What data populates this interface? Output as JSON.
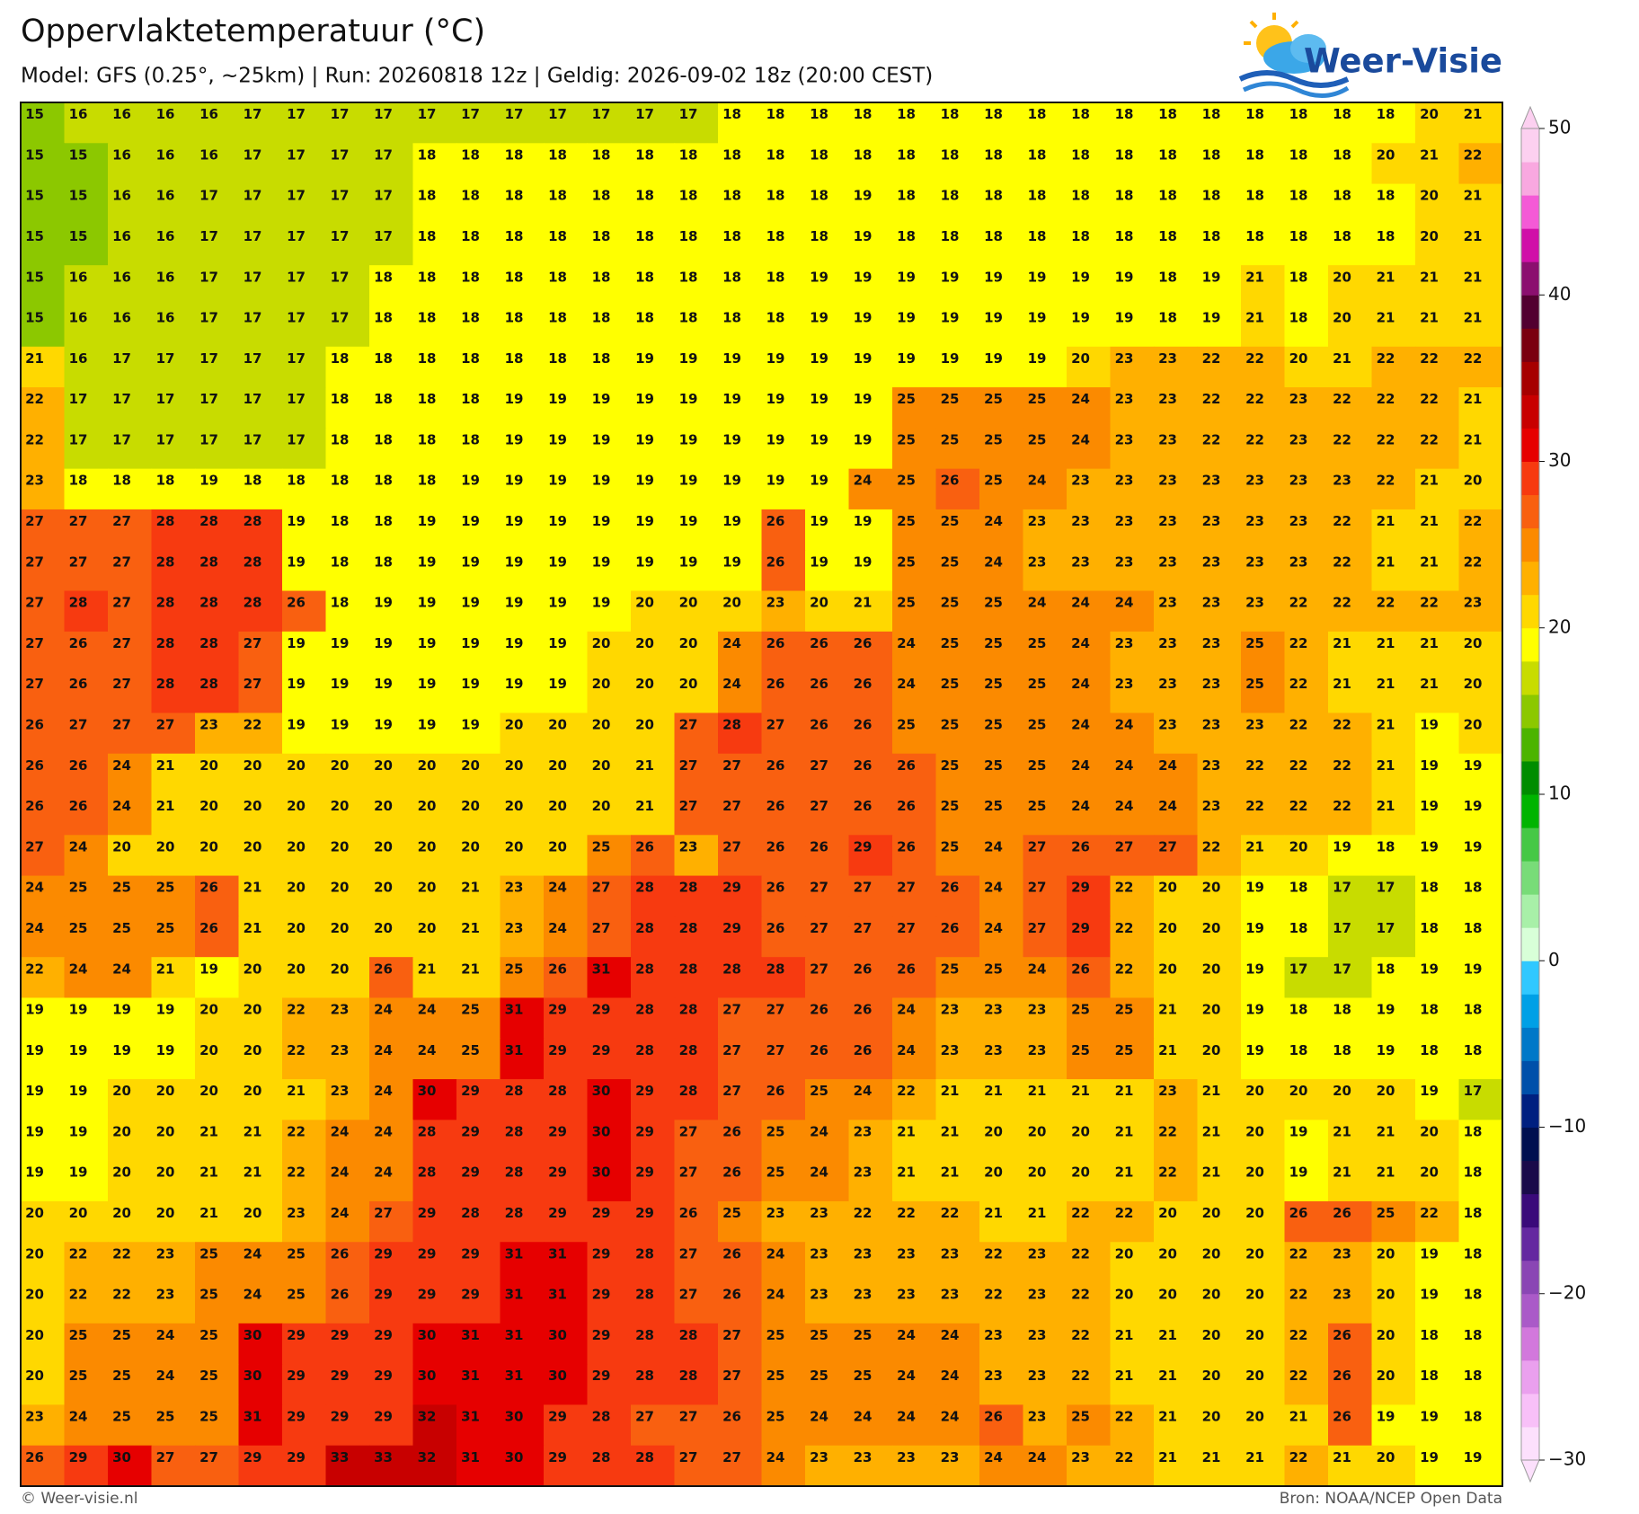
{
  "header": {
    "title": "Oppervlaktetemperatuur (°C)",
    "subtitle": "Model: GFS (0.25°, ~25km)  |  Run: 20260818 12z  |  Geldig: 2026-09-02 18z (20:00 CEST)"
  },
  "logo": {
    "text": "Weer-Visie"
  },
  "footer": {
    "left": "© Weer-visie.nl",
    "right": "Bron: NOAA/NCEP Open Data"
  },
  "colorbar": {
    "lim": [
      -30,
      50
    ],
    "ticks": [
      {
        "value": -30,
        "label": "−30"
      },
      {
        "value": -20,
        "label": "−20"
      },
      {
        "value": -10,
        "label": "−10"
      },
      0,
      10,
      20,
      30,
      40,
      50
    ],
    "colors": [
      "#fce0fc",
      "#f8c0f8",
      "#eaa0ee",
      "#d278dc",
      "#aa5ac8",
      "#8a46b4",
      "#6428a0",
      "#3a0a7a",
      "#1a0a4a",
      "#001050",
      "#002080",
      "#0050aa",
      "#0078c8",
      "#00a0e6",
      "#30c8ff",
      "#d8ffd8",
      "#a8f0a8",
      "#78dc78",
      "#46c846",
      "#00b400",
      "#008c00",
      "#4cb400",
      "#8cc800",
      "#c8dc00",
      "#ffff00",
      "#ffd800",
      "#ffb000",
      "#fb8a00",
      "#f96010",
      "#f73a10",
      "#e60000",
      "#c80000",
      "#a60000",
      "#7a0010",
      "#520030",
      "#8b0f6f",
      "#d010a8",
      "#f45ad6",
      "#f9a8e0",
      "#fcd0f0"
    ]
  },
  "map": {
    "grid": [
      [
        15,
        16,
        16,
        16,
        16,
        17,
        17,
        17,
        17,
        17,
        17,
        17,
        17,
        17,
        17,
        17,
        18,
        18,
        18,
        18,
        18,
        18,
        18,
        18,
        18,
        18,
        18,
        18,
        18,
        18,
        18,
        18,
        20,
        21
      ],
      [
        15,
        15,
        16,
        16,
        16,
        17,
        17,
        17,
        17,
        18,
        18,
        18,
        18,
        18,
        18,
        18,
        18,
        18,
        18,
        18,
        18,
        18,
        18,
        18,
        18,
        18,
        18,
        18,
        18,
        18,
        18,
        20,
        21,
        22
      ],
      [
        15,
        15,
        16,
        16,
        17,
        17,
        17,
        17,
        17,
        18,
        18,
        18,
        18,
        18,
        18,
        18,
        18,
        18,
        18,
        19,
        18,
        18,
        18,
        18,
        18,
        18,
        18,
        18,
        18,
        18,
        18,
        18,
        20,
        21
      ],
      [
        15,
        15,
        16,
        16,
        17,
        17,
        17,
        17,
        17,
        18,
        18,
        18,
        18,
        18,
        18,
        18,
        18,
        18,
        18,
        19,
        18,
        18,
        18,
        18,
        18,
        18,
        18,
        18,
        18,
        18,
        18,
        18,
        20,
        21
      ],
      [
        15,
        16,
        16,
        16,
        17,
        17,
        17,
        17,
        18,
        18,
        18,
        18,
        18,
        18,
        18,
        18,
        18,
        18,
        19,
        19,
        19,
        19,
        19,
        19,
        19,
        19,
        18,
        19,
        21,
        18,
        20,
        21,
        21,
        21
      ],
      [
        15,
        16,
        16,
        16,
        17,
        17,
        17,
        17,
        18,
        18,
        18,
        18,
        18,
        18,
        18,
        18,
        18,
        18,
        19,
        19,
        19,
        19,
        19,
        19,
        19,
        19,
        18,
        19,
        21,
        18,
        20,
        21,
        21,
        21
      ],
      [
        21,
        16,
        17,
        17,
        17,
        17,
        17,
        18,
        18,
        18,
        18,
        18,
        18,
        18,
        19,
        19,
        19,
        19,
        19,
        19,
        19,
        19,
        19,
        19,
        20,
        23,
        23,
        22,
        22,
        20,
        21,
        22,
        22,
        22
      ],
      [
        22,
        17,
        17,
        17,
        17,
        17,
        17,
        18,
        18,
        18,
        18,
        19,
        19,
        19,
        19,
        19,
        19,
        19,
        19,
        19,
        25,
        25,
        25,
        25,
        24,
        23,
        23,
        22,
        22,
        23,
        22,
        22,
        22,
        21
      ],
      [
        22,
        17,
        17,
        17,
        17,
        17,
        17,
        18,
        18,
        18,
        18,
        19,
        19,
        19,
        19,
        19,
        19,
        19,
        19,
        19,
        25,
        25,
        25,
        25,
        24,
        23,
        23,
        22,
        22,
        23,
        22,
        22,
        22,
        21
      ],
      [
        23,
        18,
        18,
        18,
        19,
        18,
        18,
        18,
        18,
        18,
        19,
        19,
        19,
        19,
        19,
        19,
        19,
        19,
        19,
        24,
        25,
        26,
        25,
        24,
        23,
        23,
        23,
        23,
        23,
        23,
        23,
        22,
        21,
        20
      ],
      [
        27,
        27,
        27,
        28,
        28,
        28,
        19,
        18,
        18,
        19,
        19,
        19,
        19,
        19,
        19,
        19,
        19,
        26,
        19,
        19,
        25,
        25,
        24,
        23,
        23,
        23,
        23,
        23,
        23,
        23,
        22,
        21,
        21,
        22
      ],
      [
        27,
        27,
        27,
        28,
        28,
        28,
        19,
        18,
        18,
        19,
        19,
        19,
        19,
        19,
        19,
        19,
        19,
        26,
        19,
        19,
        25,
        25,
        24,
        23,
        23,
        23,
        23,
        23,
        23,
        23,
        22,
        21,
        21,
        22
      ],
      [
        27,
        28,
        27,
        28,
        28,
        28,
        26,
        18,
        19,
        19,
        19,
        19,
        19,
        19,
        20,
        20,
        20,
        23,
        20,
        21,
        25,
        25,
        25,
        24,
        24,
        24,
        23,
        23,
        23,
        22,
        22,
        22,
        22,
        23
      ],
      [
        27,
        26,
        27,
        28,
        28,
        27,
        19,
        19,
        19,
        19,
        19,
        19,
        19,
        20,
        20,
        20,
        24,
        26,
        26,
        26,
        24,
        25,
        25,
        25,
        24,
        23,
        23,
        23,
        25,
        22,
        21,
        21,
        21,
        20
      ],
      [
        27,
        26,
        27,
        28,
        28,
        27,
        19,
        19,
        19,
        19,
        19,
        19,
        19,
        20,
        20,
        20,
        24,
        26,
        26,
        26,
        24,
        25,
        25,
        25,
        24,
        23,
        23,
        23,
        25,
        22,
        21,
        21,
        21,
        20
      ],
      [
        26,
        27,
        27,
        27,
        23,
        22,
        19,
        19,
        19,
        19,
        19,
        20,
        20,
        20,
        20,
        27,
        28,
        27,
        26,
        26,
        25,
        25,
        25,
        25,
        24,
        24,
        23,
        23,
        23,
        22,
        22,
        21,
        19,
        20
      ],
      [
        26,
        26,
        24,
        21,
        20,
        20,
        20,
        20,
        20,
        20,
        20,
        20,
        20,
        20,
        21,
        27,
        27,
        26,
        27,
        26,
        26,
        25,
        25,
        25,
        24,
        24,
        24,
        23,
        22,
        22,
        22,
        21,
        19,
        19
      ],
      [
        26,
        26,
        24,
        21,
        20,
        20,
        20,
        20,
        20,
        20,
        20,
        20,
        20,
        20,
        21,
        27,
        27,
        26,
        27,
        26,
        26,
        25,
        25,
        25,
        24,
        24,
        24,
        23,
        22,
        22,
        22,
        21,
        19,
        19
      ],
      [
        27,
        24,
        20,
        20,
        20,
        20,
        20,
        20,
        20,
        20,
        20,
        20,
        20,
        25,
        26,
        23,
        27,
        26,
        26,
        29,
        26,
        25,
        24,
        27,
        26,
        27,
        27,
        22,
        21,
        20,
        19,
        18,
        19,
        19
      ],
      [
        24,
        25,
        25,
        25,
        26,
        21,
        20,
        20,
        20,
        20,
        21,
        23,
        24,
        27,
        28,
        28,
        29,
        26,
        27,
        27,
        27,
        26,
        24,
        27,
        29,
        22,
        20,
        20,
        19,
        18,
        17,
        17,
        18,
        18
      ],
      [
        24,
        25,
        25,
        25,
        26,
        21,
        20,
        20,
        20,
        20,
        21,
        23,
        24,
        27,
        28,
        28,
        29,
        26,
        27,
        27,
        27,
        26,
        24,
        27,
        29,
        22,
        20,
        20,
        19,
        18,
        17,
        17,
        18,
        18
      ],
      [
        22,
        24,
        24,
        21,
        19,
        20,
        20,
        20,
        26,
        21,
        21,
        25,
        26,
        31,
        28,
        28,
        28,
        28,
        27,
        26,
        26,
        25,
        25,
        24,
        26,
        22,
        20,
        20,
        19,
        17,
        17,
        18,
        19,
        19
      ],
      [
        19,
        19,
        19,
        19,
        20,
        20,
        22,
        23,
        24,
        24,
        25,
        31,
        29,
        29,
        28,
        28,
        27,
        27,
        26,
        26,
        24,
        23,
        23,
        23,
        25,
        25,
        21,
        20,
        19,
        18,
        18,
        19,
        18,
        18
      ],
      [
        19,
        19,
        19,
        19,
        20,
        20,
        22,
        23,
        24,
        24,
        25,
        31,
        29,
        29,
        28,
        28,
        27,
        27,
        26,
        26,
        24,
        23,
        23,
        23,
        25,
        25,
        21,
        20,
        19,
        18,
        18,
        19,
        18,
        18
      ],
      [
        19,
        19,
        20,
        20,
        20,
        20,
        21,
        23,
        24,
        30,
        29,
        28,
        28,
        30,
        29,
        28,
        27,
        26,
        25,
        24,
        22,
        21,
        21,
        21,
        21,
        21,
        23,
        21,
        20,
        20,
        20,
        20,
        19,
        17
      ],
      [
        19,
        19,
        20,
        20,
        21,
        21,
        22,
        24,
        24,
        28,
        29,
        28,
        29,
        30,
        29,
        27,
        26,
        25,
        24,
        23,
        21,
        21,
        20,
        20,
        20,
        21,
        22,
        21,
        20,
        19,
        21,
        21,
        20,
        18
      ],
      [
        19,
        19,
        20,
        20,
        21,
        21,
        22,
        24,
        24,
        28,
        29,
        28,
        29,
        30,
        29,
        27,
        26,
        25,
        24,
        23,
        21,
        21,
        20,
        20,
        20,
        21,
        22,
        21,
        20,
        19,
        21,
        21,
        20,
        18
      ],
      [
        20,
        20,
        20,
        20,
        21,
        20,
        23,
        24,
        27,
        29,
        28,
        28,
        29,
        29,
        29,
        26,
        25,
        23,
        23,
        22,
        22,
        22,
        21,
        21,
        22,
        22,
        20,
        20,
        20,
        26,
        26,
        25,
        22,
        18
      ],
      [
        20,
        22,
        22,
        23,
        25,
        24,
        25,
        26,
        29,
        29,
        29,
        31,
        31,
        29,
        28,
        27,
        26,
        24,
        23,
        23,
        23,
        23,
        22,
        23,
        22,
        20,
        20,
        20,
        20,
        22,
        23,
        20,
        19,
        18
      ],
      [
        20,
        22,
        22,
        23,
        25,
        24,
        25,
        26,
        29,
        29,
        29,
        31,
        31,
        29,
        28,
        27,
        26,
        24,
        23,
        23,
        23,
        23,
        22,
        23,
        22,
        20,
        20,
        20,
        20,
        22,
        23,
        20,
        19,
        18
      ],
      [
        20,
        25,
        25,
        24,
        25,
        30,
        29,
        29,
        29,
        30,
        31,
        31,
        30,
        29,
        28,
        28,
        27,
        25,
        25,
        25,
        24,
        24,
        23,
        23,
        22,
        21,
        21,
        20,
        20,
        22,
        26,
        20,
        18,
        18
      ],
      [
        20,
        25,
        25,
        24,
        25,
        30,
        29,
        29,
        29,
        30,
        31,
        31,
        30,
        29,
        28,
        28,
        27,
        25,
        25,
        25,
        24,
        24,
        23,
        23,
        22,
        21,
        21,
        20,
        20,
        22,
        26,
        20,
        18,
        18
      ],
      [
        23,
        24,
        25,
        25,
        25,
        31,
        29,
        29,
        29,
        32,
        31,
        30,
        29,
        28,
        27,
        27,
        26,
        25,
        24,
        24,
        24,
        24,
        26,
        23,
        25,
        22,
        21,
        20,
        20,
        21,
        26,
        19,
        19,
        18
      ],
      [
        26,
        29,
        30,
        27,
        27,
        29,
        29,
        33,
        33,
        32,
        31,
        30,
        29,
        28,
        28,
        27,
        27,
        24,
        23,
        23,
        23,
        23,
        24,
        24,
        23,
        22,
        21,
        21,
        21,
        22,
        21,
        20,
        19,
        19
      ]
    ]
  }
}
